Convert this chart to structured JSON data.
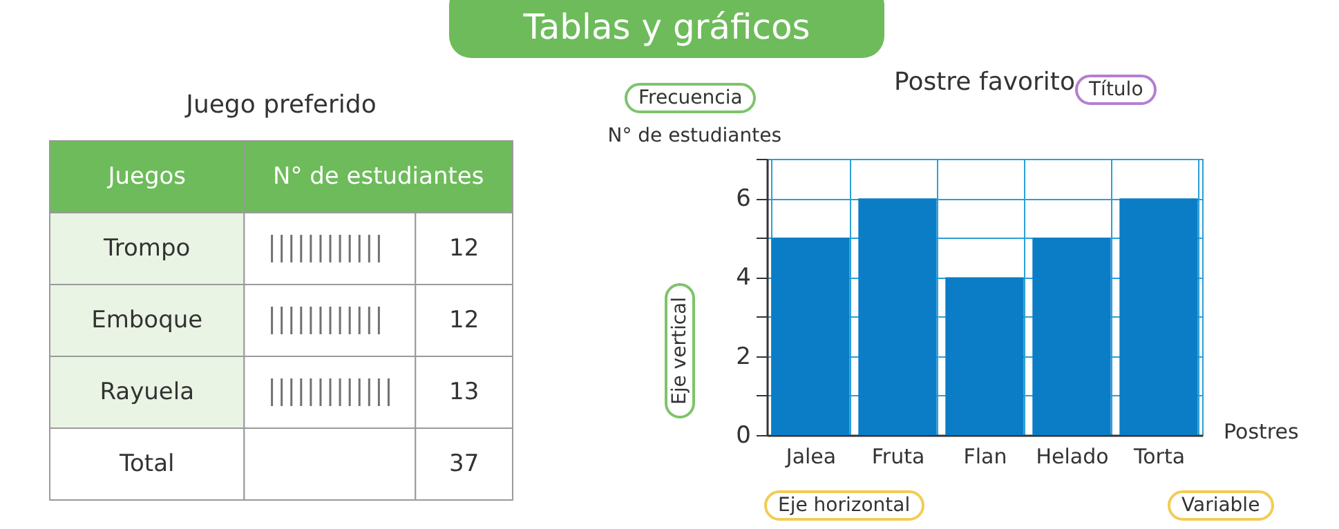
{
  "chart_data": [
    {
      "type": "other",
      "subtitle": "Tablas y gráficos",
      "title": "Juego preferido",
      "xlabel": "Juegos",
      "ylabel": "N° de estudiantes",
      "categories": [
        "Trompo",
        "Emboque",
        "Rayuela"
      ],
      "values": [
        12,
        12,
        13
      ],
      "data_labels": true,
      "annotations": [
        "Total",
        "37"
      ]
    },
    {
      "type": "bar",
      "title": "Postre favorito",
      "xlabel": "Postres",
      "ylabel": "N° de estudiantes",
      "categories": [
        "Jalea",
        "Fruta",
        "Flan",
        "Helado",
        "Torta"
      ],
      "values": [
        5,
        6,
        4,
        5,
        6
      ],
      "color": "#0a7dc6",
      "ylim": [
        0,
        7
      ],
      "yticks": [
        0,
        {
          "value": 1,
          "label": null
        },
        2,
        {
          "value": 3,
          "label": null
        },
        4,
        {
          "value": 5,
          "label": null
        },
        6,
        {
          "value": 7,
          "label": null
        }
      ],
      "grid": true,
      "annotations": [
        "Frecuencia",
        "Título",
        "Eje vertical",
        "Eje horizontal",
        "Variable"
      ]
    }
  ]
}
